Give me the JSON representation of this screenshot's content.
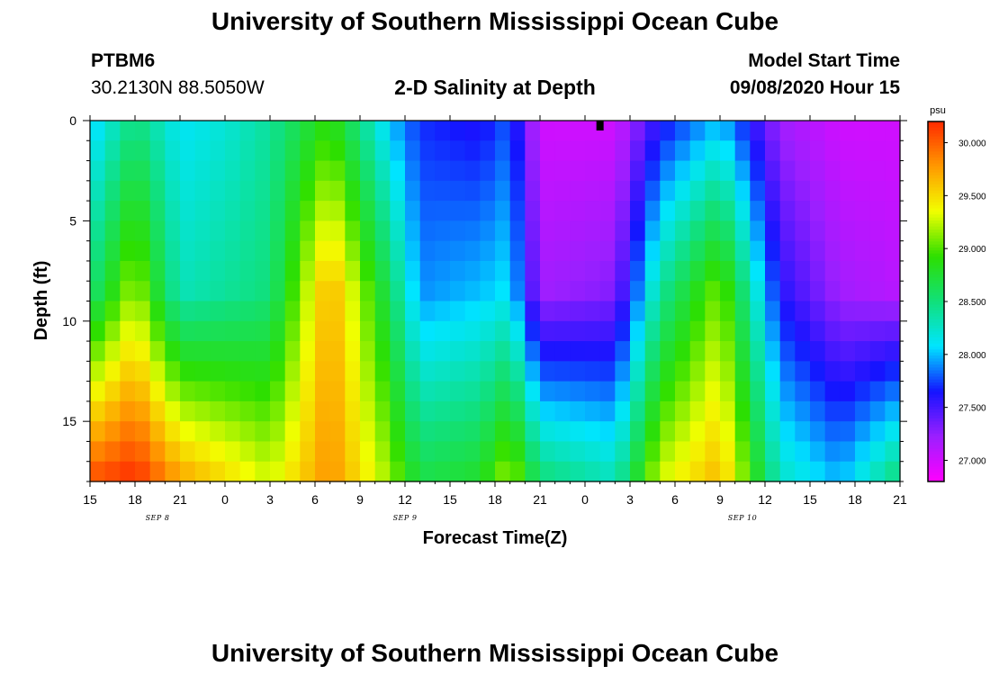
{
  "header": {
    "title": "University of Southern Mississippi Ocean Cube",
    "station_id": "PTBM6",
    "station_coords": "30.2130N 88.5050W",
    "plot_title": "2-D Salinity at Depth",
    "model_start_label": "Model Start Time",
    "model_start_value": "09/08/2020 Hour 15"
  },
  "footer": {
    "title": "University of Southern Mississippi Ocean Cube"
  },
  "chart_data": {
    "type": "heatmap",
    "title": "2-D Salinity at Depth",
    "xlabel": "Forecast Time(Z)",
    "ylabel": "Depth (ft)",
    "x_ticks": [
      "15",
      "18",
      "21",
      "0",
      "3",
      "6",
      "9",
      "12",
      "15",
      "18",
      "21",
      "0",
      "3",
      "6",
      "9",
      "12",
      "15",
      "18",
      "21"
    ],
    "x_tick_hours": [
      0,
      3,
      6,
      9,
      12,
      15,
      18,
      21,
      24,
      27,
      30,
      33,
      36,
      39,
      42,
      45,
      48,
      51,
      54
    ],
    "date_labels": [
      {
        "label": "SEP 8",
        "hour": 4.5
      },
      {
        "label": "SEP 9",
        "hour": 21
      },
      {
        "label": "SEP 10",
        "hour": 43.5
      }
    ],
    "y_ticks": [
      0,
      5,
      10,
      15
    ],
    "ylim": [
      0,
      18
    ],
    "xlim": [
      0,
      54
    ],
    "depth_levels": [
      0,
      1,
      2,
      3,
      4,
      5,
      6,
      7,
      8,
      9,
      10,
      11,
      12,
      13,
      14,
      15,
      16,
      17
    ],
    "forecast_hours": [
      0,
      1,
      2,
      3,
      4,
      5,
      6,
      7,
      8,
      9,
      10,
      11,
      12,
      13,
      14,
      15,
      16,
      17,
      18,
      19,
      20,
      21,
      22,
      23,
      24,
      25,
      26,
      27,
      28,
      29,
      30,
      31,
      32,
      33,
      34,
      35,
      36,
      37,
      38,
      39,
      40,
      41,
      42,
      43,
      44,
      45,
      46,
      47,
      48,
      49,
      50,
      51,
      52,
      53
    ],
    "salinity_anchor_columns": [
      {
        "hour": 0,
        "top": 28.0,
        "mid": 28.5,
        "bottom": 29.9
      },
      {
        "hour": 3,
        "top": 28.5,
        "mid": 29.2,
        "bottom": 30.1
      },
      {
        "hour": 6,
        "top": 28.1,
        "mid": 28.3,
        "bottom": 29.6
      },
      {
        "hour": 9,
        "top": 28.2,
        "mid": 28.4,
        "bottom": 29.4
      },
      {
        "hour": 12,
        "top": 28.4,
        "mid": 28.5,
        "bottom": 29.2
      },
      {
        "hour": 16,
        "top": 28.9,
        "mid": 29.7,
        "bottom": 29.8
      },
      {
        "hour": 20,
        "top": 28.0,
        "mid": 28.6,
        "bottom": 29.1
      },
      {
        "hour": 22,
        "top": 27.7,
        "mid": 27.9,
        "bottom": 28.6
      },
      {
        "hour": 26,
        "top": 27.6,
        "mid": 28.0,
        "bottom": 28.7
      },
      {
        "hour": 28,
        "top": 27.8,
        "mid": 28.1,
        "bottom": 29.1
      },
      {
        "hour": 30,
        "top": 27.0,
        "mid": 27.2,
        "bottom": 28.4
      },
      {
        "hour": 35,
        "top": 27.0,
        "mid": 27.3,
        "bottom": 28.2
      },
      {
        "hour": 38,
        "top": 27.6,
        "mid": 28.4,
        "bottom": 29.2
      },
      {
        "hour": 42,
        "top": 28.0,
        "mid": 29.1,
        "bottom": 29.6
      },
      {
        "hour": 46,
        "top": 27.2,
        "mid": 27.6,
        "bottom": 28.2
      },
      {
        "hour": 50,
        "top": 27.0,
        "mid": 27.2,
        "bottom": 27.9
      },
      {
        "hour": 54,
        "top": 27.0,
        "mid": 27.1,
        "bottom": 28.4
      }
    ],
    "colorbar": {
      "unit": "psu",
      "min": 26.8,
      "max": 30.2,
      "tick_labels": [
        "30.000",
        "29.500",
        "29.000",
        "28.500",
        "28.000",
        "27.500",
        "27.000"
      ],
      "tick_values": [
        30.0,
        29.5,
        29.0,
        28.5,
        28.0,
        27.5,
        27.0
      ],
      "colors": [
        "#ff00ff",
        "#9b1fff",
        "#1414ff",
        "#00e5ff",
        "#11e07a",
        "#2ddf00",
        "#f2ff00",
        "#ff9900",
        "#ff2a00"
      ]
    },
    "current_time_marker_hour": 34
  }
}
